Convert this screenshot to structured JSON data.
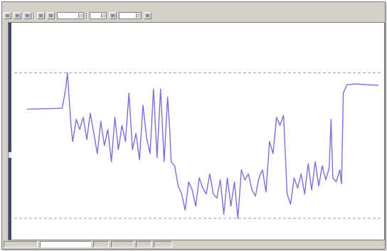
{
  "app": {
    "menu": [
      "",
      "",
      "",
      "",
      "",
      ""
    ]
  },
  "colors": {
    "series": "#7b6fd6",
    "reference_line": "#9c9c9c",
    "chrome": "#d4d0c8",
    "scrollbar": "#46466e"
  },
  "chart_data": {
    "type": "line",
    "title": "",
    "xlabel": "",
    "ylabel": "",
    "xlim": [
      0,
      100
    ],
    "ylim": [
      0,
      100
    ],
    "grid": false,
    "reference_lines_y": [
      78,
      6
    ],
    "series": [
      {
        "values": [
          [
            0,
            60
          ],
          [
            10,
            60.5
          ],
          [
            11,
            70
          ],
          [
            11.5,
            78
          ],
          [
            12.5,
            52
          ],
          [
            13,
            44
          ],
          [
            14,
            55
          ],
          [
            15,
            50
          ],
          [
            16,
            56
          ],
          [
            17,
            45
          ],
          [
            18,
            58
          ],
          [
            19,
            48
          ],
          [
            20,
            38
          ],
          [
            21,
            54
          ],
          [
            22,
            42
          ],
          [
            23,
            50
          ],
          [
            24,
            34
          ],
          [
            25,
            56
          ],
          [
            26,
            40
          ],
          [
            27,
            52
          ],
          [
            28,
            44
          ],
          [
            29,
            68
          ],
          [
            30,
            40
          ],
          [
            31,
            48
          ],
          [
            32,
            35
          ],
          [
            33,
            62
          ],
          [
            34,
            46
          ],
          [
            35,
            38
          ],
          [
            36,
            70
          ],
          [
            37,
            36
          ],
          [
            38,
            70
          ],
          [
            39,
            34
          ],
          [
            40,
            66
          ],
          [
            40.6,
            50
          ],
          [
            41,
            34
          ],
          [
            42,
            32
          ],
          [
            43,
            22
          ],
          [
            44,
            18
          ],
          [
            45,
            10
          ],
          [
            46,
            24
          ],
          [
            47,
            20
          ],
          [
            48,
            12
          ],
          [
            49,
            26
          ],
          [
            50,
            21
          ],
          [
            51,
            18
          ],
          [
            52,
            28
          ],
          [
            53,
            18
          ],
          [
            54,
            16
          ],
          [
            55,
            25
          ],
          [
            56,
            8
          ],
          [
            57,
            26
          ],
          [
            58,
            12
          ],
          [
            59,
            24
          ],
          [
            60,
            6
          ],
          [
            61,
            30
          ],
          [
            62,
            25
          ],
          [
            63,
            28
          ],
          [
            64,
            20
          ],
          [
            65,
            17
          ],
          [
            66,
            26
          ],
          [
            67,
            30
          ],
          [
            68,
            19
          ],
          [
            69,
            44
          ],
          [
            70,
            38
          ],
          [
            71,
            56
          ],
          [
            72,
            52
          ],
          [
            73,
            57
          ],
          [
            74,
            18
          ],
          [
            75,
            13
          ],
          [
            76,
            26
          ],
          [
            77,
            21
          ],
          [
            78,
            28
          ],
          [
            79,
            18
          ],
          [
            80,
            33
          ],
          [
            81,
            20
          ],
          [
            82,
            34
          ],
          [
            83,
            22
          ],
          [
            84,
            32
          ],
          [
            85,
            25
          ],
          [
            86,
            31
          ],
          [
            86.5,
            55
          ],
          [
            87,
            26
          ],
          [
            88,
            24
          ],
          [
            89,
            30
          ],
          [
            89.5,
            23
          ],
          [
            90,
            68
          ],
          [
            91,
            72
          ],
          [
            92,
            72.3
          ],
          [
            94,
            72.5
          ],
          [
            96,
            72.2
          ],
          [
            98,
            72.0
          ],
          [
            100,
            71.8
          ]
        ]
      }
    ],
    "x_tick_labels": [],
    "y_tick_labels": []
  }
}
